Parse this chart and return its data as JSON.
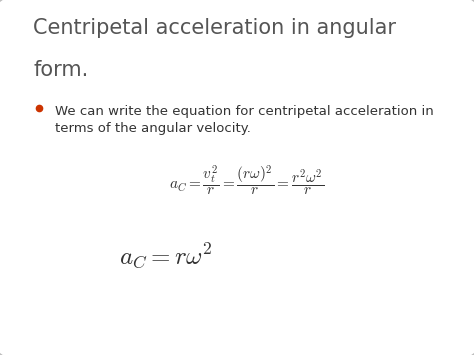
{
  "title_line1": "Centripetal acceleration in angular",
  "title_line2": "form.",
  "title_fontsize": 15,
  "title_color": "#555555",
  "bullet_color": "#cc3300",
  "bullet_text_line1": "We can write the equation for centripetal acceleration in",
  "bullet_text_line2": "terms of the angular velocity.",
  "bullet_fontsize": 9.5,
  "body_text_color": "#333333",
  "formula1": "$a_C = \\dfrac{v_t^2}{r} = \\dfrac{(r\\omega)^2}{r} = \\dfrac{r^2\\omega^2}{r}$",
  "formula2": "$a_C = r\\omega^2$",
  "formula1_fontsize": 11,
  "formula2_fontsize": 18,
  "background_color": "#ffffff",
  "border_color": "#bbbbbb",
  "fig_width": 4.74,
  "fig_height": 3.55,
  "dpi": 100
}
